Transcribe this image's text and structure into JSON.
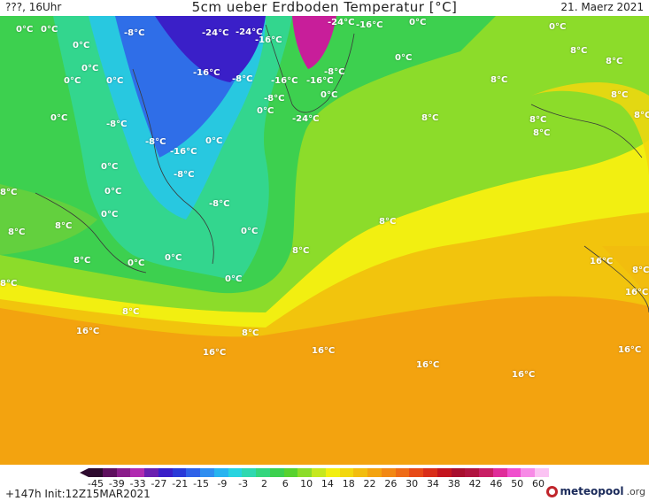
{
  "header": {
    "left": "???, 16Uhr",
    "title": "5cm ueber Erdboden Temperatur [°C]",
    "date": "21. Maerz 2021"
  },
  "labels": [
    "0°C",
    "0°C",
    "-8°C",
    "-24°C",
    "-24°C",
    "-16°C",
    "-24°C",
    "-16°C",
    "0°C",
    "0°C",
    "0°C",
    "8°C",
    "0°C",
    "0°C",
    "0°C",
    "-16°C",
    "-8°C",
    "-16°C",
    "-16°C",
    "-8°C",
    "0°C",
    "8°C",
    "0°C",
    "-8°C",
    "0°C",
    "8°C",
    "8°C",
    "8°C",
    "0°C",
    "-8°C",
    "-24°C",
    "8°C",
    "8°C",
    "8°C",
    "0°C",
    "-8°C",
    "-16°C",
    "0°C",
    "0°C",
    "-8°C",
    "8°C",
    "8°C",
    "0°C",
    "-8°C",
    "8°C",
    "8°C",
    "0°C",
    "8°C",
    "0°C",
    "0°C",
    "8°C",
    "8°C",
    "0°C",
    "16°C",
    "8°C",
    "16°C",
    "8°C",
    "16°C",
    "8°C",
    "16°C",
    "16°C",
    "16°C",
    "16°C",
    "16°C"
  ],
  "colorbar": {
    "colors": [
      "#2d0a2e",
      "#5e0f5e",
      "#8a1d8a",
      "#b02bb0",
      "#6a1fb0",
      "#3a1fc8",
      "#2a3ad8",
      "#2f62e8",
      "#2f8ef0",
      "#27b4f0",
      "#28d4e0",
      "#2fd8b0",
      "#33d67e",
      "#3dd04f",
      "#58d22f",
      "#8cdc2a",
      "#c6e81e",
      "#f2ef11",
      "#f2d70e",
      "#f2bd0e",
      "#f3a30f",
      "#f28814",
      "#ee6b17",
      "#e74a18",
      "#d92e1a",
      "#c4151f",
      "#a80e2e",
      "#b0133f",
      "#c81e64",
      "#e02c9a",
      "#f04fcd",
      "#f78ae6",
      "#fbc3f3"
    ],
    "ticks": [
      "-45",
      "-39",
      "-33",
      "-27",
      "-21",
      "-15",
      "-9",
      "-3",
      "2",
      "6",
      "10",
      "14",
      "18",
      "22",
      "26",
      "30",
      "34",
      "38",
      "42",
      "46",
      "50",
      "60"
    ]
  },
  "footer": {
    "run": "+147h  Init:12Z15MAR2021",
    "brand": "meteopool",
    "tld": ".org"
  }
}
